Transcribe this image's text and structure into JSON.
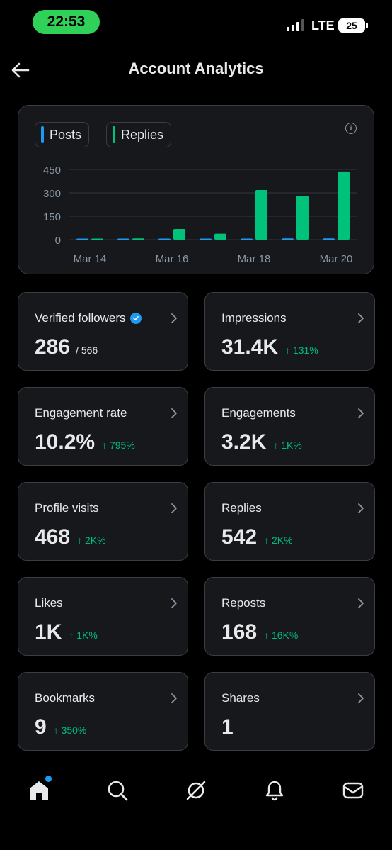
{
  "status_bar": {
    "time": "22:53",
    "network": "LTE",
    "battery": "25"
  },
  "header": {
    "title": "Account Analytics"
  },
  "chart_data": {
    "type": "bar",
    "legend": [
      "Posts",
      "Replies"
    ],
    "categories": [
      "Mar 14",
      "Mar 15",
      "Mar 16",
      "Mar 17",
      "Mar 18",
      "Mar 19",
      "Mar 20"
    ],
    "x_tick_labels": [
      "Mar 14",
      "Mar 16",
      "Mar 18",
      "Mar 20"
    ],
    "y_tick_labels": [
      "450",
      "300",
      "150",
      "0"
    ],
    "ylim": [
      0,
      450
    ],
    "series": [
      {
        "name": "Posts",
        "color": "#1d9bf0",
        "values": [
          0,
          0,
          2,
          3,
          5,
          8,
          8
        ]
      },
      {
        "name": "Replies",
        "color": "#00c27a",
        "values": [
          5,
          8,
          68,
          38,
          318,
          281,
          437
        ]
      }
    ],
    "grid": true
  },
  "cards": [
    {
      "label": "Verified followers",
      "value": "286",
      "sub": "/ 566",
      "delta": "",
      "verified": true
    },
    {
      "label": "Impressions",
      "value": "31.4K",
      "sub": "",
      "delta": "↑ 131%"
    },
    {
      "label": "Engagement rate",
      "value": "10.2%",
      "sub": "",
      "delta": "↑ 795%"
    },
    {
      "label": "Engagements",
      "value": "3.2K",
      "sub": "",
      "delta": "↑ 1K%"
    },
    {
      "label": "Profile visits",
      "value": "468",
      "sub": "",
      "delta": "↑ 2K%"
    },
    {
      "label": "Replies",
      "value": "542",
      "sub": "",
      "delta": "↑ 2K%"
    },
    {
      "label": "Likes",
      "value": "1K",
      "sub": "",
      "delta": "↑ 1K%"
    },
    {
      "label": "Reposts",
      "value": "168",
      "sub": "",
      "delta": "↑ 16K%"
    },
    {
      "label": "Bookmarks",
      "value": "9",
      "sub": "",
      "delta": "↑ 350%"
    },
    {
      "label": "Shares",
      "value": "1",
      "sub": "",
      "delta": ""
    }
  ],
  "nav": [
    "home-icon",
    "search-icon",
    "grok-icon",
    "notifications-icon",
    "messages-icon"
  ],
  "colors": {
    "accent": "#1d9bf0",
    "positive": "#00ba7c",
    "status_pill": "#30d158"
  }
}
